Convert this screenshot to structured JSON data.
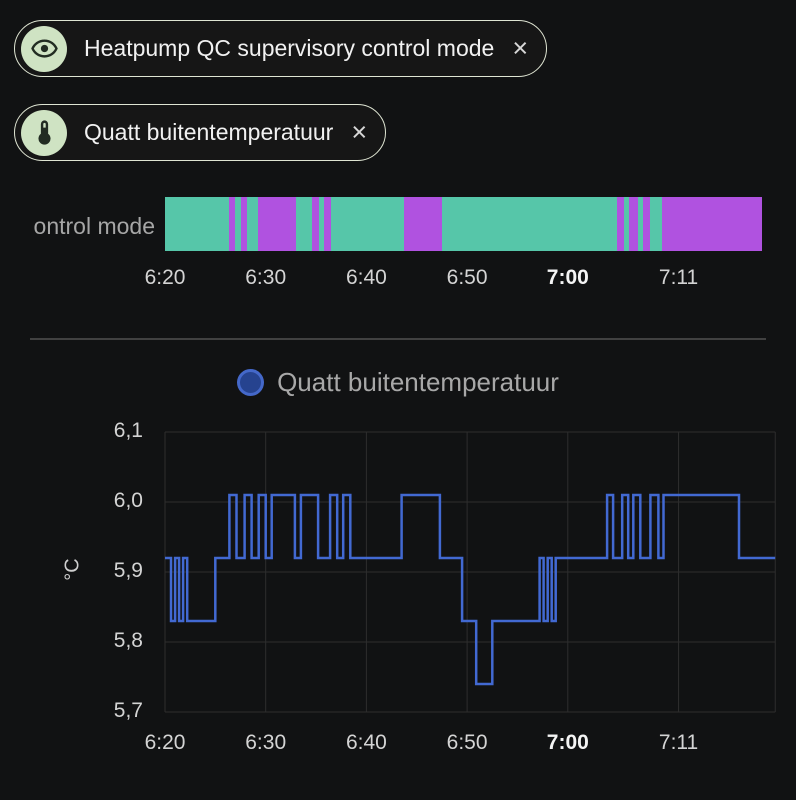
{
  "theme": {
    "bg": "#111213",
    "grid": "#2e2e2e",
    "divider": "#414141",
    "chip_bg": "#161616",
    "chip_border": "#dfe5d3",
    "chip_icon_bg": "#cfe3c3",
    "chip_icon_fg": "#222c22",
    "timeline_teal": "#56c6a9",
    "timeline_purple": "#b052e0",
    "line_color": "#4269d2",
    "legend_fill": "#26438f",
    "legend_stroke": "#4468c9"
  },
  "chips": [
    {
      "label": "Heatpump QC supervisory control mode",
      "icon": "eye-icon",
      "close": "×"
    },
    {
      "label": "Quatt buitentemperatuur",
      "icon": "thermometer-icon",
      "close": "×"
    }
  ],
  "chart_data": [
    {
      "type": "timeline",
      "label": "ontrol mode",
      "t_max": 59.2,
      "colors": {
        "teal": "#56c6a9",
        "purple": "#b052e0"
      },
      "x_ticks": [
        {
          "t": 0,
          "label": "6:20"
        },
        {
          "t": 10,
          "label": "6:30"
        },
        {
          "t": 20,
          "label": "6:40"
        },
        {
          "t": 30,
          "label": "6:50"
        },
        {
          "t": 40,
          "label": "7:00",
          "bold": true
        },
        {
          "t": 51,
          "label": "7:11"
        }
      ],
      "segments": [
        {
          "start": 0.0,
          "end": 6.3,
          "state": "teal"
        },
        {
          "start": 6.3,
          "end": 6.9,
          "state": "purple"
        },
        {
          "start": 6.9,
          "end": 7.5,
          "state": "teal"
        },
        {
          "start": 7.5,
          "end": 8.1,
          "state": "purple"
        },
        {
          "start": 8.1,
          "end": 9.2,
          "state": "teal"
        },
        {
          "start": 9.2,
          "end": 13.0,
          "state": "purple"
        },
        {
          "start": 13.0,
          "end": 14.6,
          "state": "teal"
        },
        {
          "start": 14.6,
          "end": 15.3,
          "state": "purple"
        },
        {
          "start": 15.3,
          "end": 15.8,
          "state": "teal"
        },
        {
          "start": 15.8,
          "end": 16.5,
          "state": "purple"
        },
        {
          "start": 16.5,
          "end": 23.7,
          "state": "teal"
        },
        {
          "start": 23.7,
          "end": 27.5,
          "state": "purple"
        },
        {
          "start": 27.5,
          "end": 44.8,
          "state": "teal"
        },
        {
          "start": 44.8,
          "end": 45.5,
          "state": "purple"
        },
        {
          "start": 45.5,
          "end": 46.0,
          "state": "teal"
        },
        {
          "start": 46.0,
          "end": 46.9,
          "state": "purple"
        },
        {
          "start": 46.9,
          "end": 47.4,
          "state": "teal"
        },
        {
          "start": 47.4,
          "end": 48.1,
          "state": "purple"
        },
        {
          "start": 48.1,
          "end": 49.3,
          "state": "teal"
        },
        {
          "start": 49.3,
          "end": 59.2,
          "state": "purple"
        }
      ]
    },
    {
      "type": "line",
      "title": "Quatt buitentemperatuur",
      "ylabel": "°C",
      "ylim": [
        5.7,
        6.1
      ],
      "xlim": [
        0,
        60.6
      ],
      "y_ticks": [
        {
          "v": 6.1,
          "label": "6,1"
        },
        {
          "v": 6.0,
          "label": "6,0"
        },
        {
          "v": 5.9,
          "label": "5,9"
        },
        {
          "v": 5.8,
          "label": "5,8"
        },
        {
          "v": 5.7,
          "label": "5,7"
        }
      ],
      "x_ticks": [
        {
          "t": 0,
          "label": "6:20"
        },
        {
          "t": 10,
          "label": "6:30"
        },
        {
          "t": 20,
          "label": "6:40"
        },
        {
          "t": 30,
          "label": "6:50"
        },
        {
          "t": 40,
          "label": "7:00",
          "bold": true
        },
        {
          "t": 51,
          "label": "7:11"
        }
      ],
      "step_points": [
        [
          0.0,
          5.92
        ],
        [
          0.6,
          5.83
        ],
        [
          1.0,
          5.92
        ],
        [
          1.4,
          5.83
        ],
        [
          1.8,
          5.92
        ],
        [
          2.2,
          5.83
        ],
        [
          5.0,
          5.92
        ],
        [
          6.4,
          6.01
        ],
        [
          7.1,
          5.92
        ],
        [
          7.9,
          6.01
        ],
        [
          8.6,
          5.92
        ],
        [
          9.3,
          6.01
        ],
        [
          10.0,
          5.92
        ],
        [
          10.6,
          6.01
        ],
        [
          12.9,
          5.92
        ],
        [
          13.5,
          6.01
        ],
        [
          15.2,
          5.92
        ],
        [
          16.4,
          6.01
        ],
        [
          17.1,
          5.92
        ],
        [
          17.7,
          6.01
        ],
        [
          18.4,
          5.92
        ],
        [
          23.5,
          6.01
        ],
        [
          27.3,
          5.92
        ],
        [
          29.5,
          5.83
        ],
        [
          30.9,
          5.74
        ],
        [
          32.5,
          5.83
        ],
        [
          37.2,
          5.92
        ],
        [
          37.6,
          5.83
        ],
        [
          38.0,
          5.92
        ],
        [
          38.4,
          5.83
        ],
        [
          38.8,
          5.92
        ],
        [
          43.9,
          6.01
        ],
        [
          44.5,
          5.92
        ],
        [
          45.4,
          6.01
        ],
        [
          46.0,
          5.92
        ],
        [
          46.5,
          6.01
        ],
        [
          47.2,
          5.92
        ],
        [
          48.2,
          6.01
        ],
        [
          49.0,
          5.92
        ],
        [
          49.5,
          6.01
        ],
        [
          57.0,
          5.92
        ]
      ]
    }
  ]
}
